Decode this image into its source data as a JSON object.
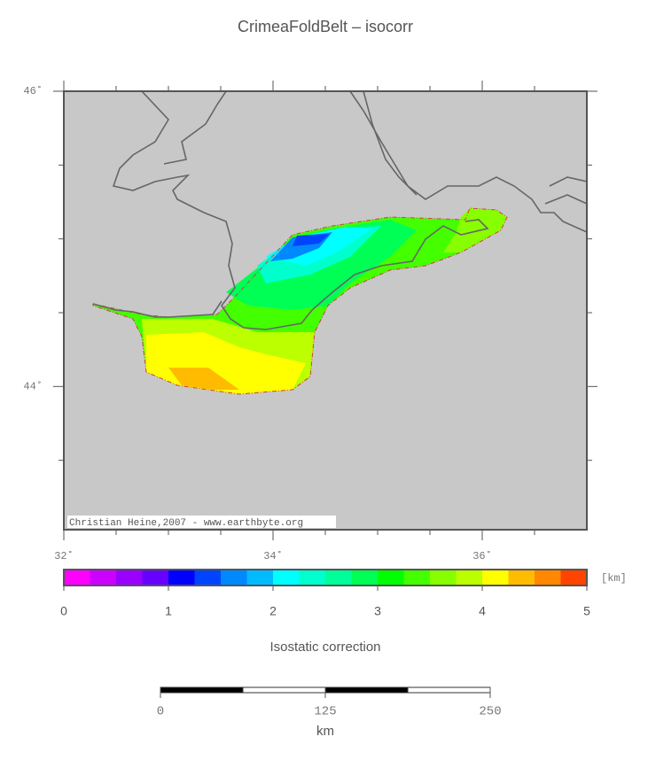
{
  "title": "CrimeaFoldBelt – isocorr",
  "map": {
    "xlim": [
      32,
      37
    ],
    "ylim": [
      43.03,
      46
    ],
    "xticks": [
      {
        "value": 32,
        "label": "32˚"
      },
      {
        "value": 34,
        "label": "34˚"
      },
      {
        "value": 36,
        "label": "36˚"
      }
    ],
    "yticks": [
      {
        "value": 44,
        "label": "44˚"
      },
      {
        "value": 46,
        "label": "46˚"
      }
    ],
    "xticks_minor": [
      32.5,
      33,
      33.5,
      34.5,
      35,
      35.5,
      36.5
    ],
    "yticks_minor": [
      43.5,
      44.5,
      45,
      45.5
    ],
    "credit": "Christian Heine,2007 - www.earthbyte.org"
  },
  "colorbar": {
    "bounds": [
      0,
      0.25,
      0.5,
      0.75,
      1,
      1.25,
      1.5,
      1.75,
      2,
      2.25,
      2.5,
      2.75,
      3,
      3.25,
      3.5,
      3.75,
      4,
      4.25,
      4.5,
      4.75,
      5
    ],
    "colors": [
      "#ff00ff",
      "#cc00ff",
      "#9900ff",
      "#6600ff",
      "#0000ff",
      "#0044ff",
      "#0088ff",
      "#00bbff",
      "#00ffff",
      "#00ffcc",
      "#00ff99",
      "#00ff55",
      "#00ff00",
      "#44ff00",
      "#88ff00",
      "#bbff00",
      "#ffff00",
      "#ffbb00",
      "#ff8800",
      "#ff4400"
    ],
    "ticks": [
      0,
      1,
      2,
      3,
      4,
      5
    ],
    "unit": "[km]",
    "label": "Isostatic correction"
  },
  "scalebar": {
    "edges": [
      0,
      62.5,
      125,
      187.5,
      250
    ],
    "ticks": [
      0,
      125,
      250
    ],
    "unit": "km"
  }
}
